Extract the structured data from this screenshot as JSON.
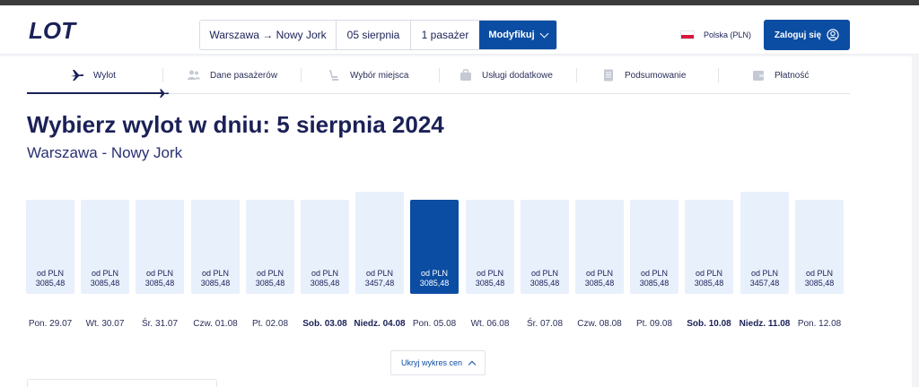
{
  "brand": {
    "logo_text": "LOT",
    "accent": "#0b4da2",
    "dark_text": "#1b2157",
    "bar_bg": "#e8f0fc"
  },
  "search": {
    "route": "Warszawa → Nowy Jork",
    "date": "05 sierpnia",
    "passengers": "1 pasażer",
    "modify_label": "Modyfikuj"
  },
  "language": {
    "label": "Polska (PLN)",
    "flag_icon": "poland-flag-icon"
  },
  "login": {
    "label": "Zaloguj się",
    "icon": "user-circle-icon"
  },
  "steps": [
    {
      "label": "Wylot",
      "icon": "plane-icon",
      "active": true
    },
    {
      "label": "Dane pasażerów",
      "icon": "passengers-icon",
      "active": false
    },
    {
      "label": "Wybór miejsca",
      "icon": "seat-icon",
      "active": false
    },
    {
      "label": "Usługi dodatkowe",
      "icon": "luggage-icon",
      "active": false
    },
    {
      "label": "Podsumowanie",
      "icon": "document-icon",
      "active": false
    },
    {
      "label": "Płatność",
      "icon": "wallet-icon",
      "active": false
    }
  ],
  "page": {
    "title": "Wybierz wylot w dniu: 5 sierpnia 2024",
    "subtitle": "Warszawa - Nowy Jork"
  },
  "chart_data": {
    "type": "bar",
    "categories": [
      "Pon. 29.07",
      "Wt. 30.07",
      "Śr. 31.07",
      "Czw. 01.08",
      "Pt. 02.08",
      "Sob. 03.08",
      "Niedz. 04.08",
      "Pon. 05.08",
      "Wt. 06.08",
      "Śr. 07.08",
      "Czw. 08.08",
      "Pt. 09.08",
      "Sob. 10.08",
      "Niedz. 11.08",
      "Pon. 12.08"
    ],
    "values": [
      3085.48,
      3085.48,
      3085.48,
      3085.48,
      3085.48,
      3085.48,
      3457.48,
      3085.48,
      3085.48,
      3085.48,
      3085.48,
      3085.48,
      3085.48,
      3457.48,
      3085.48
    ],
    "bar_labels": [
      "3085,48",
      "3085,48",
      "3085,48",
      "3085,48",
      "3085,48",
      "3085,48",
      "3457,48",
      "3085,48",
      "3085,48",
      "3085,48",
      "3085,48",
      "3085,48",
      "3085,48",
      "3457,48",
      "3085,48"
    ],
    "price_prefix": "od PLN",
    "bold_categories": [
      5,
      6,
      12,
      13
    ],
    "selected_index": 7,
    "title": "",
    "xlabel": "",
    "ylabel": ""
  },
  "chart_toggle": {
    "label": "Ukryj wykres cen",
    "icon": "chevron-up-icon"
  }
}
